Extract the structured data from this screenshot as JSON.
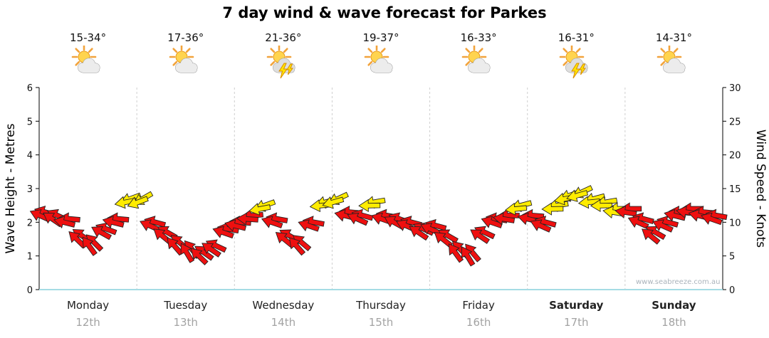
{
  "title": "7 day wind & wave forecast for Parkes",
  "watermark": "www.seabreeze.com.au",
  "axes": {
    "left_title": "Wave Height - Metres",
    "right_title": "Wind Speed - Knots",
    "left_ticks": [
      0,
      1,
      2,
      3,
      4,
      5,
      6
    ],
    "right_ticks": [
      0,
      5,
      10,
      15,
      20,
      25,
      30
    ],
    "left_range": [
      0,
      6
    ],
    "right_range": [
      0,
      30
    ]
  },
  "days": [
    {
      "name": "Monday",
      "date": "12th",
      "temp": "15-34°",
      "icon": "partly-cloudy",
      "emphasis": false
    },
    {
      "name": "Tuesday",
      "date": "13th",
      "temp": "17-36°",
      "icon": "partly-cloudy",
      "emphasis": false
    },
    {
      "name": "Wednesday",
      "date": "14th",
      "temp": "21-36°",
      "icon": "thunderstorm",
      "emphasis": false
    },
    {
      "name": "Thursday",
      "date": "15th",
      "temp": "19-37°",
      "icon": "partly-cloudy",
      "emphasis": false
    },
    {
      "name": "Friday",
      "date": "16th",
      "temp": "16-33°",
      "icon": "partly-cloudy",
      "emphasis": false
    },
    {
      "name": "Saturday",
      "date": "17th",
      "temp": "16-31°",
      "icon": "thunderstorm",
      "emphasis": true
    },
    {
      "name": "Sunday",
      "date": "18th",
      "temp": "14-31°",
      "icon": "partly-cloudy",
      "emphasis": true
    }
  ],
  "chart_data": {
    "type": "scatter",
    "subtype": "wind-direction-arrows",
    "title": "7 day wind & wave forecast for Parkes",
    "ylabel_left": "Wave Height - Metres",
    "ylabel_right": "Wind Speed - Knots",
    "ylim_left": [
      0,
      6
    ],
    "ylim_right": [
      0,
      30
    ],
    "grid": "vertical-day-separators-dashed",
    "x_categories": [
      "Monday 12th",
      "Tuesday 13th",
      "Wednesday 14th",
      "Thursday 15th",
      "Friday 16th",
      "Saturday 17th",
      "Sunday 18th"
    ],
    "arrow_colors": {
      "red": "#ee0f0f",
      "yellow": "#ffec00"
    },
    "points": [
      {
        "day": 0,
        "knots": 11.5,
        "dir": 195,
        "color": "red"
      },
      {
        "day": 0,
        "knots": 11.0,
        "dir": 205,
        "color": "red"
      },
      {
        "day": 0,
        "knots": 10.5,
        "dir": 185,
        "color": "red"
      },
      {
        "day": 0,
        "knots": 8.0,
        "dir": 215,
        "color": "red"
      },
      {
        "day": 0,
        "knots": 7.0,
        "dir": 225,
        "color": "red"
      },
      {
        "day": 0,
        "knots": 9.0,
        "dir": 200,
        "color": "red"
      },
      {
        "day": 0,
        "knots": 10.5,
        "dir": 185,
        "color": "red"
      },
      {
        "day": 0,
        "knots": 13.5,
        "dir": 160,
        "color": "yellow"
      },
      {
        "day": 1,
        "knots": 13.5,
        "dir": 150,
        "color": "yellow"
      },
      {
        "day": 1,
        "knots": 10.0,
        "dir": 195,
        "color": "red"
      },
      {
        "day": 1,
        "knots": 8.5,
        "dir": 210,
        "color": "red"
      },
      {
        "day": 1,
        "knots": 7.0,
        "dir": 220,
        "color": "red"
      },
      {
        "day": 1,
        "knots": 6.0,
        "dir": 230,
        "color": "red"
      },
      {
        "day": 1,
        "knots": 5.5,
        "dir": 215,
        "color": "red"
      },
      {
        "day": 1,
        "knots": 6.5,
        "dir": 205,
        "color": "red"
      },
      {
        "day": 1,
        "knots": 9.0,
        "dir": 190,
        "color": "red"
      },
      {
        "day": 2,
        "knots": 10.0,
        "dir": 185,
        "color": "red"
      },
      {
        "day": 2,
        "knots": 11.0,
        "dir": 175,
        "color": "red"
      },
      {
        "day": 2,
        "knots": 12.5,
        "dir": 160,
        "color": "yellow"
      },
      {
        "day": 2,
        "knots": 10.5,
        "dir": 190,
        "color": "red"
      },
      {
        "day": 2,
        "knots": 8.0,
        "dir": 210,
        "color": "red"
      },
      {
        "day": 2,
        "knots": 7.0,
        "dir": 220,
        "color": "red"
      },
      {
        "day": 2,
        "knots": 10.0,
        "dir": 190,
        "color": "red"
      },
      {
        "day": 2,
        "knots": 13.0,
        "dir": 165,
        "color": "yellow"
      },
      {
        "day": 3,
        "knots": 13.5,
        "dir": 155,
        "color": "yellow"
      },
      {
        "day": 3,
        "knots": 11.5,
        "dir": 185,
        "color": "red"
      },
      {
        "day": 3,
        "knots": 11.0,
        "dir": 195,
        "color": "red"
      },
      {
        "day": 3,
        "knots": 13.0,
        "dir": 170,
        "color": "yellow"
      },
      {
        "day": 3,
        "knots": 11.0,
        "dir": 190,
        "color": "red"
      },
      {
        "day": 3,
        "knots": 10.5,
        "dir": 200,
        "color": "red"
      },
      {
        "day": 3,
        "knots": 10.0,
        "dir": 195,
        "color": "red"
      },
      {
        "day": 3,
        "knots": 9.0,
        "dir": 205,
        "color": "red"
      },
      {
        "day": 4,
        "knots": 9.5,
        "dir": 195,
        "color": "red"
      },
      {
        "day": 4,
        "knots": 8.0,
        "dir": 210,
        "color": "red"
      },
      {
        "day": 4,
        "knots": 6.0,
        "dir": 225,
        "color": "red"
      },
      {
        "day": 4,
        "knots": 5.5,
        "dir": 230,
        "color": "red"
      },
      {
        "day": 4,
        "knots": 8.5,
        "dir": 205,
        "color": "red"
      },
      {
        "day": 4,
        "knots": 10.5,
        "dir": 190,
        "color": "red"
      },
      {
        "day": 4,
        "knots": 11.0,
        "dir": 180,
        "color": "red"
      },
      {
        "day": 4,
        "knots": 12.5,
        "dir": 165,
        "color": "yellow"
      },
      {
        "day": 5,
        "knots": 11.0,
        "dir": 185,
        "color": "red"
      },
      {
        "day": 5,
        "knots": 10.0,
        "dir": 195,
        "color": "red"
      },
      {
        "day": 5,
        "knots": 12.5,
        "dir": 170,
        "color": "yellow"
      },
      {
        "day": 5,
        "knots": 14.0,
        "dir": 160,
        "color": "yellow"
      },
      {
        "day": 5,
        "knots": 14.5,
        "dir": 155,
        "color": "yellow"
      },
      {
        "day": 5,
        "knots": 13.5,
        "dir": 165,
        "color": "yellow"
      },
      {
        "day": 5,
        "knots": 13.0,
        "dir": 170,
        "color": "yellow"
      },
      {
        "day": 5,
        "knots": 12.0,
        "dir": 180,
        "color": "yellow"
      },
      {
        "day": 6,
        "knots": 12.0,
        "dir": 180,
        "color": "red"
      },
      {
        "day": 6,
        "knots": 10.5,
        "dir": 195,
        "color": "red"
      },
      {
        "day": 6,
        "knots": 8.5,
        "dir": 210,
        "color": "red"
      },
      {
        "day": 6,
        "knots": 10.0,
        "dir": 195,
        "color": "red"
      },
      {
        "day": 6,
        "knots": 11.5,
        "dir": 185,
        "color": "red"
      },
      {
        "day": 6,
        "knots": 12.0,
        "dir": 180,
        "color": "red"
      },
      {
        "day": 6,
        "knots": 11.5,
        "dir": 185,
        "color": "red"
      },
      {
        "day": 6,
        "knots": 11.0,
        "dir": 190,
        "color": "red"
      }
    ]
  }
}
